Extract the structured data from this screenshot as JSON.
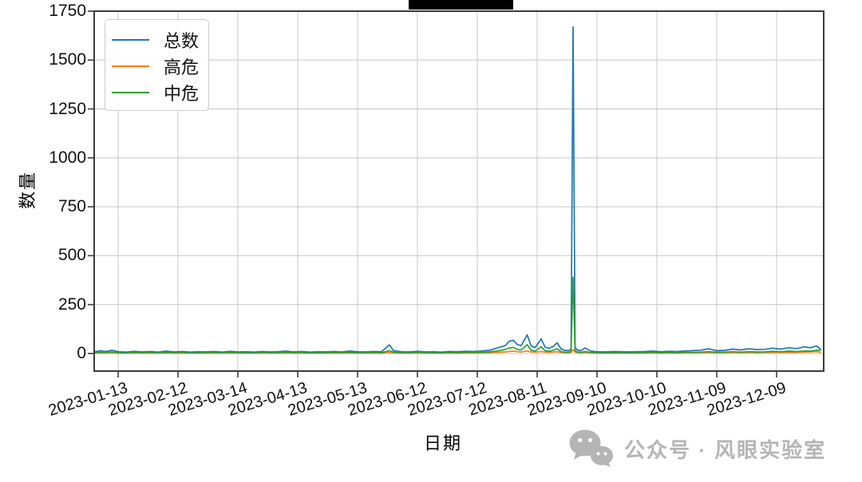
{
  "chart_data": {
    "type": "line",
    "title": "",
    "title_redacted": true,
    "xlabel": "日期",
    "ylabel": "数量",
    "grid": true,
    "legend_position": "upper left",
    "x_start": "2023-01-01",
    "x_end": "2023-12-31",
    "x_ticks": [
      "2023-01-13",
      "2023-02-12",
      "2023-03-14",
      "2023-04-13",
      "2023-05-13",
      "2023-06-12",
      "2023-07-12",
      "2023-08-11",
      "2023-09-10",
      "2023-10-10",
      "2023-11-09",
      "2023-12-09"
    ],
    "y_ticks": [
      0,
      250,
      500,
      750,
      1000,
      1250,
      1500,
      1750
    ],
    "ylim": [
      -90,
      1750
    ],
    "dates": [
      "2023-01-01",
      "2023-01-04",
      "2023-01-07",
      "2023-01-10",
      "2023-01-13",
      "2023-01-17",
      "2023-01-21",
      "2023-01-25",
      "2023-01-29",
      "2023-02-02",
      "2023-02-06",
      "2023-02-10",
      "2023-02-14",
      "2023-02-18",
      "2023-02-22",
      "2023-02-26",
      "2023-03-02",
      "2023-03-06",
      "2023-03-10",
      "2023-03-14",
      "2023-03-18",
      "2023-03-22",
      "2023-03-26",
      "2023-03-30",
      "2023-04-03",
      "2023-04-07",
      "2023-04-11",
      "2023-04-15",
      "2023-04-19",
      "2023-04-23",
      "2023-04-27",
      "2023-05-01",
      "2023-05-05",
      "2023-05-09",
      "2023-05-13",
      "2023-05-17",
      "2023-05-21",
      "2023-05-25",
      "2023-05-29",
      "2023-05-31",
      "2023-06-04",
      "2023-06-08",
      "2023-06-12",
      "2023-06-16",
      "2023-06-20",
      "2023-06-24",
      "2023-06-28",
      "2023-07-02",
      "2023-07-06",
      "2023-07-10",
      "2023-07-14",
      "2023-07-18",
      "2023-07-22",
      "2023-07-26",
      "2023-07-28",
      "2023-07-30",
      "2023-08-01",
      "2023-08-03",
      "2023-08-06",
      "2023-08-08",
      "2023-08-10",
      "2023-08-13",
      "2023-08-15",
      "2023-08-17",
      "2023-08-19",
      "2023-08-21",
      "2023-08-23",
      "2023-08-25",
      "2023-08-27",
      "2023-08-28",
      "2023-08-29",
      "2023-08-30",
      "2023-08-31",
      "2023-09-02",
      "2023-09-04",
      "2023-09-07",
      "2023-09-10",
      "2023-09-14",
      "2023-09-18",
      "2023-09-22",
      "2023-09-26",
      "2023-09-30",
      "2023-10-04",
      "2023-10-08",
      "2023-10-12",
      "2023-10-16",
      "2023-10-20",
      "2023-10-24",
      "2023-10-28",
      "2023-11-01",
      "2023-11-05",
      "2023-11-09",
      "2023-11-13",
      "2023-11-17",
      "2023-11-21",
      "2023-11-25",
      "2023-11-29",
      "2023-12-03",
      "2023-12-07",
      "2023-12-11",
      "2023-12-15",
      "2023-12-19",
      "2023-12-23",
      "2023-12-26",
      "2023-12-29",
      "2023-12-31"
    ],
    "series": [
      {
        "name": "总数",
        "color": "#1f77b4",
        "values": [
          8,
          14,
          10,
          16,
          9,
          7,
          11,
          8,
          10,
          7,
          12,
          8,
          10,
          7,
          9,
          8,
          10,
          7,
          11,
          8,
          9,
          7,
          10,
          8,
          9,
          12,
          8,
          10,
          7,
          9,
          8,
          10,
          8,
          12,
          9,
          8,
          10,
          9,
          44,
          14,
          9,
          8,
          11,
          8,
          9,
          7,
          10,
          9,
          11,
          10,
          13,
          16,
          28,
          40,
          62,
          68,
          46,
          40,
          95,
          38,
          30,
          75,
          32,
          26,
          36,
          55,
          22,
          16,
          14,
          25,
          1670,
          32,
          18,
          15,
          28,
          12,
          9,
          8,
          10,
          9,
          8,
          9,
          10,
          12,
          9,
          11,
          10,
          13,
          15,
          17,
          24,
          14,
          16,
          22,
          18,
          24,
          20,
          21,
          27,
          22,
          29,
          25,
          34,
          29,
          38,
          22
        ]
      },
      {
        "name": "高危",
        "color": "#ff7f0e",
        "values": [
          2,
          3,
          2,
          3,
          2,
          2,
          3,
          2,
          2,
          2,
          3,
          2,
          2,
          2,
          2,
          2,
          2,
          2,
          3,
          2,
          2,
          2,
          2,
          2,
          2,
          3,
          2,
          2,
          2,
          2,
          2,
          2,
          2,
          3,
          2,
          2,
          2,
          2,
          5,
          3,
          2,
          2,
          3,
          2,
          2,
          2,
          2,
          2,
          3,
          2,
          3,
          4,
          6,
          8,
          10,
          12,
          9,
          8,
          13,
          8,
          7,
          10,
          7,
          6,
          7,
          9,
          5,
          4,
          4,
          5,
          20,
          7,
          5,
          4,
          5,
          3,
          2,
          2,
          2,
          2,
          2,
          2,
          2,
          3,
          2,
          3,
          2,
          3,
          3,
          4,
          5,
          3,
          4,
          5,
          4,
          5,
          4,
          5,
          6,
          5,
          6,
          5,
          7,
          8,
          10,
          6
        ]
      },
      {
        "name": "中危",
        "color": "#2ca02c",
        "values": [
          4,
          6,
          5,
          7,
          4,
          3,
          5,
          4,
          5,
          3,
          5,
          4,
          5,
          3,
          4,
          4,
          5,
          3,
          5,
          4,
          4,
          3,
          5,
          4,
          4,
          5,
          4,
          5,
          3,
          4,
          4,
          5,
          4,
          5,
          4,
          4,
          5,
          4,
          14,
          6,
          4,
          4,
          5,
          4,
          4,
          3,
          5,
          4,
          5,
          5,
          6,
          8,
          13,
          20,
          28,
          31,
          21,
          18,
          45,
          17,
          13,
          34,
          14,
          11,
          16,
          24,
          9,
          7,
          6,
          10,
          390,
          13,
          8,
          6,
          10,
          5,
          4,
          3,
          4,
          4,
          3,
          4,
          4,
          5,
          4,
          5,
          4,
          6,
          6,
          7,
          9,
          6,
          7,
          9,
          7,
          9,
          8,
          8,
          11,
          9,
          12,
          10,
          13,
          12,
          16,
          17
        ]
      }
    ],
    "annotations": {
      "peak_total": {
        "date": "2023-08-29",
        "value": 1670
      },
      "peak_medium": {
        "date": "2023-08-29",
        "value": 390
      }
    }
  },
  "watermark": {
    "text": "公众号 · 风眼实验室",
    "icon": "wechat-logo",
    "color": "#b5b5b5"
  }
}
